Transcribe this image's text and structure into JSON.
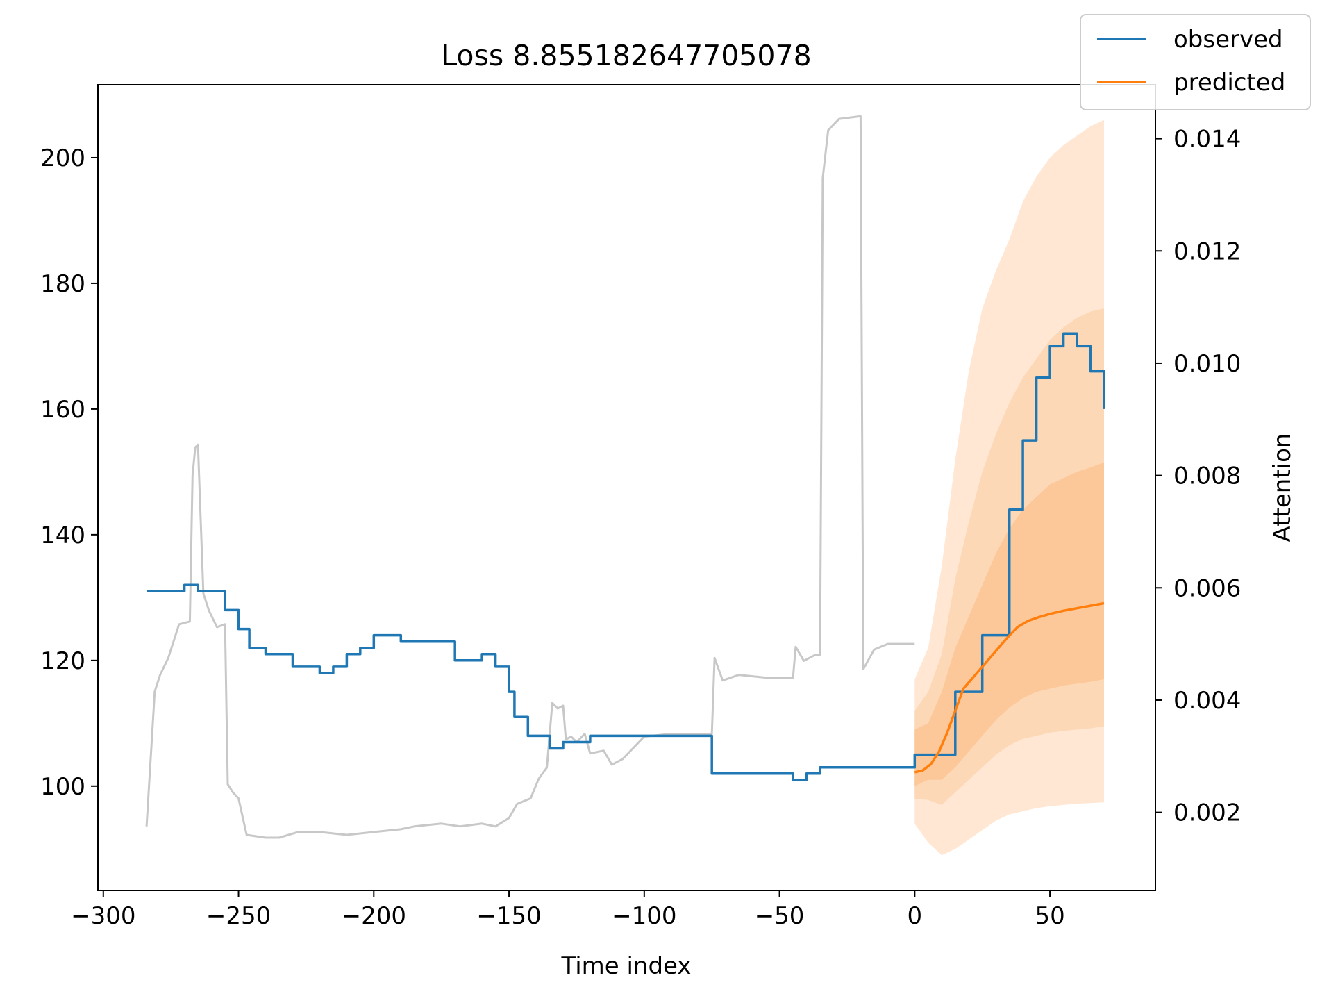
{
  "chart_data": {
    "type": "line",
    "title": "Loss 8.855182647705078",
    "xlabel": "Time index",
    "ylabel": "",
    "y2label": "Attention",
    "xlim": [
      -302,
      89
    ],
    "ylim": [
      83.4,
      211.6
    ],
    "y2lim": [
      0.00061,
      0.01496
    ],
    "x_ticks": [
      -300,
      -250,
      -200,
      -150,
      -100,
      -50,
      0,
      50
    ],
    "x_tick_labels": [
      "−300",
      "−250",
      "−200",
      "−150",
      "−100",
      "−50",
      "0",
      "50"
    ],
    "y_ticks": [
      100,
      120,
      140,
      160,
      180,
      200
    ],
    "y_tick_labels": [
      "100",
      "120",
      "140",
      "160",
      "180",
      "200"
    ],
    "y2_ticks": [
      0.002,
      0.004,
      0.006,
      0.008,
      0.01,
      0.012,
      0.014
    ],
    "y2_tick_labels": [
      "0.002",
      "0.004",
      "0.006",
      "0.008",
      "0.010",
      "0.012",
      "0.014"
    ],
    "legend": {
      "placement": "top-right",
      "entries": [
        "observed",
        "predicted"
      ]
    },
    "colors": {
      "observed": "#1f77b4",
      "predicted": "#ff7f0e",
      "attention": "#c8c8c8",
      "band_outer": "#ffe7d3",
      "band_mid": "#fdd8b6",
      "band_inner": "#fcc89a"
    },
    "series": [
      {
        "name": "observed",
        "axis": "left",
        "step": true,
        "points": [
          [
            -284,
            131
          ],
          [
            -270,
            131
          ],
          [
            -270,
            132
          ],
          [
            -265,
            132
          ],
          [
            -265,
            131
          ],
          [
            -255,
            131
          ],
          [
            -255,
            128
          ],
          [
            -250,
            128
          ],
          [
            -250,
            125
          ],
          [
            -246,
            125
          ],
          [
            -246,
            122
          ],
          [
            -240,
            122
          ],
          [
            -240,
            121
          ],
          [
            -230,
            121
          ],
          [
            -230,
            119
          ],
          [
            -220,
            119
          ],
          [
            -220,
            118
          ],
          [
            -215,
            118
          ],
          [
            -215,
            119
          ],
          [
            -210,
            119
          ],
          [
            -210,
            121
          ],
          [
            -205,
            121
          ],
          [
            -205,
            122
          ],
          [
            -200,
            122
          ],
          [
            -200,
            124
          ],
          [
            -190,
            124
          ],
          [
            -190,
            123
          ],
          [
            -170,
            123
          ],
          [
            -170,
            120
          ],
          [
            -160,
            120
          ],
          [
            -160,
            121
          ],
          [
            -155,
            121
          ],
          [
            -155,
            119
          ],
          [
            -150,
            119
          ],
          [
            -150,
            115
          ],
          [
            -148,
            115
          ],
          [
            -148,
            111
          ],
          [
            -143,
            111
          ],
          [
            -143,
            108
          ],
          [
            -135,
            108
          ],
          [
            -135,
            106
          ],
          [
            -130,
            106
          ],
          [
            -130,
            107
          ],
          [
            -120,
            107
          ],
          [
            -120,
            108
          ],
          [
            -75,
            108
          ],
          [
            -75,
            102
          ],
          [
            -45,
            102
          ],
          [
            -45,
            101
          ],
          [
            -40,
            101
          ],
          [
            -40,
            102
          ],
          [
            -35,
            102
          ],
          [
            -35,
            103
          ],
          [
            0,
            103
          ],
          [
            0,
            105
          ],
          [
            15,
            105
          ],
          [
            15,
            115
          ],
          [
            25,
            115
          ],
          [
            25,
            124
          ],
          [
            35,
            124
          ],
          [
            35,
            144
          ],
          [
            40,
            144
          ],
          [
            40,
            155
          ],
          [
            45,
            155
          ],
          [
            45,
            165
          ],
          [
            50,
            165
          ],
          [
            50,
            170
          ],
          [
            55,
            170
          ],
          [
            55,
            172
          ],
          [
            60,
            172
          ],
          [
            60,
            170
          ],
          [
            65,
            170
          ],
          [
            65,
            166
          ],
          [
            70,
            166
          ],
          [
            70,
            160
          ]
        ]
      },
      {
        "name": "predicted",
        "axis": "left",
        "step": false,
        "points": [
          [
            0,
            102.2
          ],
          [
            3,
            102.5
          ],
          [
            6,
            103.5
          ],
          [
            9,
            105.5
          ],
          [
            12,
            108.5
          ],
          [
            15,
            112
          ],
          [
            18,
            115.5
          ],
          [
            22,
            117.5
          ],
          [
            26,
            119.5
          ],
          [
            30,
            121.5
          ],
          [
            34,
            123.5
          ],
          [
            38,
            125.3
          ],
          [
            42,
            126.3
          ],
          [
            46,
            126.9
          ],
          [
            50,
            127.4
          ],
          [
            55,
            127.9
          ],
          [
            60,
            128.3
          ],
          [
            65,
            128.7
          ],
          [
            70,
            129.1
          ]
        ]
      },
      {
        "name": "attention",
        "axis": "right",
        "step": false,
        "points": [
          [
            -284,
            0.00175
          ],
          [
            -281,
            0.00415
          ],
          [
            -279,
            0.00445
          ],
          [
            -276,
            0.00475
          ],
          [
            -272,
            0.00535
          ],
          [
            -268,
            0.0054
          ],
          [
            -267,
            0.008
          ],
          [
            -266,
            0.0085
          ],
          [
            -265,
            0.00855
          ],
          [
            -263,
            0.0059
          ],
          [
            -261,
            0.0056
          ],
          [
            -258,
            0.0053
          ],
          [
            -255,
            0.00535
          ],
          [
            -254,
            0.0025
          ],
          [
            -252,
            0.00235
          ],
          [
            -250,
            0.00225
          ],
          [
            -247,
            0.0016
          ],
          [
            -240,
            0.00155
          ],
          [
            -235,
            0.00155
          ],
          [
            -228,
            0.00165
          ],
          [
            -220,
            0.00165
          ],
          [
            -210,
            0.0016
          ],
          [
            -200,
            0.00165
          ],
          [
            -190,
            0.0017
          ],
          [
            -185,
            0.00175
          ],
          [
            -175,
            0.0018
          ],
          [
            -168,
            0.00175
          ],
          [
            -160,
            0.0018
          ],
          [
            -155,
            0.00175
          ],
          [
            -150,
            0.0019
          ],
          [
            -147,
            0.00215
          ],
          [
            -142,
            0.00225
          ],
          [
            -139,
            0.0026
          ],
          [
            -136,
            0.0028
          ],
          [
            -134,
            0.00395
          ],
          [
            -132,
            0.00385
          ],
          [
            -130,
            0.0039
          ],
          [
            -129,
            0.0033
          ],
          [
            -127,
            0.00335
          ],
          [
            -125,
            0.00325
          ],
          [
            -122,
            0.0034
          ],
          [
            -120,
            0.00305
          ],
          [
            -115,
            0.0031
          ],
          [
            -112,
            0.00285
          ],
          [
            -108,
            0.00295
          ],
          [
            -100,
            0.00335
          ],
          [
            -90,
            0.0034
          ],
          [
            -80,
            0.0034
          ],
          [
            -75,
            0.0034
          ],
          [
            -74,
            0.00475
          ],
          [
            -71,
            0.00435
          ],
          [
            -65,
            0.00445
          ],
          [
            -55,
            0.0044
          ],
          [
            -45,
            0.0044
          ],
          [
            -44,
            0.00495
          ],
          [
            -41,
            0.0047
          ],
          [
            -37,
            0.0048
          ],
          [
            -35,
            0.0048
          ],
          [
            -34,
            0.0133
          ],
          [
            -32,
            0.01415
          ],
          [
            -28,
            0.01435
          ],
          [
            -20,
            0.0144
          ],
          [
            -19,
            0.00455
          ],
          [
            -15,
            0.0049
          ],
          [
            -10,
            0.005
          ],
          [
            0,
            0.005
          ]
        ]
      }
    ],
    "bands": [
      {
        "level": "outer",
        "upper": [
          [
            0,
            117
          ],
          [
            5,
            122
          ],
          [
            10,
            135
          ],
          [
            15,
            152
          ],
          [
            20,
            166
          ],
          [
            25,
            176
          ],
          [
            30,
            182
          ],
          [
            35,
            187
          ],
          [
            40,
            193
          ],
          [
            45,
            197
          ],
          [
            50,
            200
          ],
          [
            55,
            202
          ],
          [
            60,
            203.5
          ],
          [
            65,
            205
          ],
          [
            70,
            206
          ]
        ],
        "lower": [
          [
            0,
            94
          ],
          [
            5,
            91
          ],
          [
            10,
            89
          ],
          [
            15,
            90
          ],
          [
            20,
            91.5
          ],
          [
            25,
            93
          ],
          [
            30,
            94.5
          ],
          [
            35,
            95.5
          ],
          [
            40,
            96
          ],
          [
            45,
            96.5
          ],
          [
            50,
            96.8
          ],
          [
            55,
            97
          ],
          [
            60,
            97.2
          ],
          [
            65,
            97.3
          ],
          [
            70,
            97.4
          ]
        ]
      },
      {
        "level": "mid",
        "upper": [
          [
            0,
            112
          ],
          [
            5,
            115
          ],
          [
            10,
            121
          ],
          [
            15,
            133
          ],
          [
            20,
            142
          ],
          [
            25,
            150
          ],
          [
            30,
            156
          ],
          [
            35,
            161
          ],
          [
            40,
            165
          ],
          [
            45,
            168
          ],
          [
            50,
            171
          ],
          [
            55,
            173
          ],
          [
            60,
            174.5
          ],
          [
            65,
            175.5
          ],
          [
            70,
            176
          ]
        ],
        "lower": [
          [
            0,
            98
          ],
          [
            5,
            97.8
          ],
          [
            10,
            97
          ],
          [
            15,
            99
          ],
          [
            20,
            101
          ],
          [
            25,
            103
          ],
          [
            30,
            105
          ],
          [
            35,
            106.5
          ],
          [
            40,
            107.5
          ],
          [
            45,
            108
          ],
          [
            50,
            108.5
          ],
          [
            55,
            108.8
          ],
          [
            60,
            109
          ],
          [
            65,
            109.2
          ],
          [
            70,
            109.5
          ]
        ]
      },
      {
        "level": "inner",
        "upper": [
          [
            0,
            109
          ],
          [
            5,
            110
          ],
          [
            10,
            115
          ],
          [
            15,
            122
          ],
          [
            20,
            127
          ],
          [
            25,
            132
          ],
          [
            30,
            137
          ],
          [
            35,
            141
          ],
          [
            40,
            144
          ],
          [
            45,
            146
          ],
          [
            50,
            148
          ],
          [
            55,
            149
          ],
          [
            60,
            150
          ],
          [
            65,
            150.7
          ],
          [
            70,
            151.5
          ]
        ],
        "lower": [
          [
            0,
            100
          ],
          [
            5,
            101
          ],
          [
            10,
            101
          ],
          [
            15,
            103
          ],
          [
            20,
            105.5
          ],
          [
            25,
            108
          ],
          [
            30,
            110.5
          ],
          [
            35,
            112.5
          ],
          [
            40,
            114
          ],
          [
            45,
            115
          ],
          [
            50,
            115.5
          ],
          [
            55,
            116
          ],
          [
            60,
            116.3
          ],
          [
            65,
            116.6
          ],
          [
            70,
            117
          ]
        ]
      }
    ]
  }
}
